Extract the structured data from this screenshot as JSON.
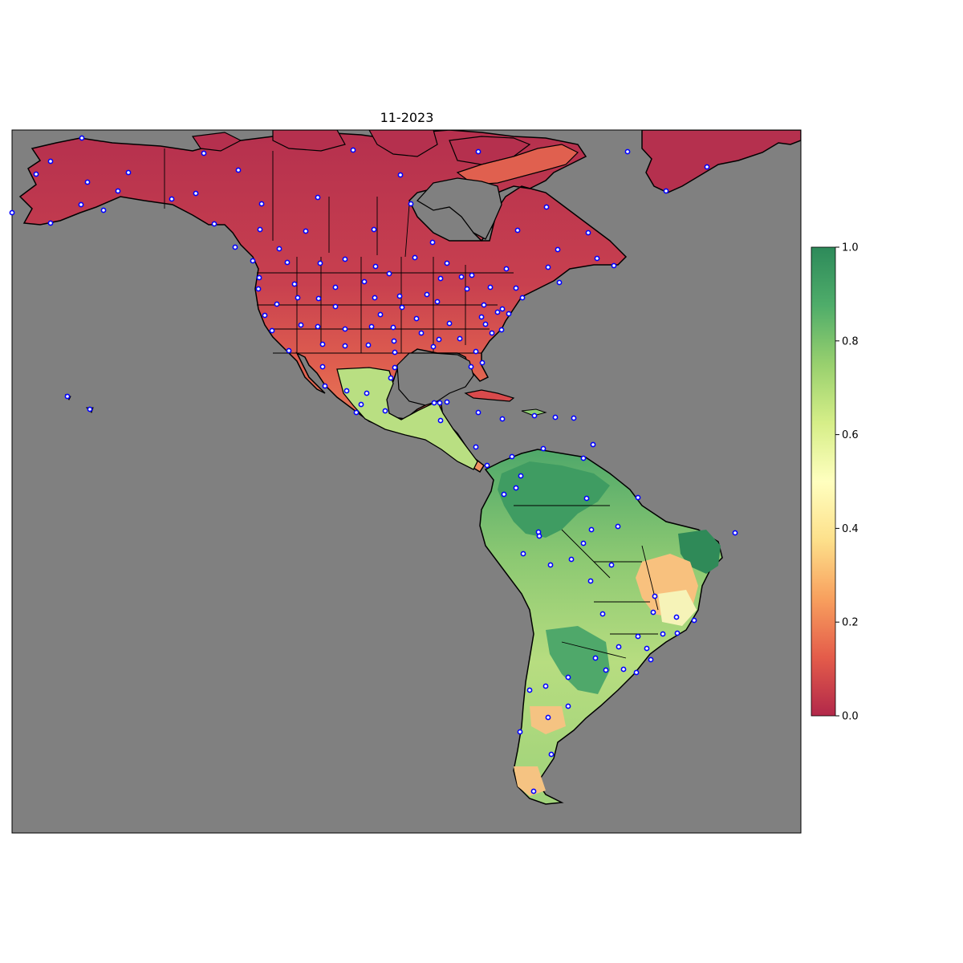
{
  "title": "11-2023",
  "colorbar": {
    "min": 0.0,
    "max": 1.0,
    "ticks": [
      "0.0",
      "0.2",
      "0.4",
      "0.6",
      "0.8",
      "1.0"
    ],
    "tick_values": [
      0.0,
      0.2,
      0.4,
      0.6,
      0.8,
      1.0
    ],
    "colormap": [
      "#b2284a",
      "#e45c4a",
      "#f8a05e",
      "#fde08b",
      "#ffffbf",
      "#d6ee88",
      "#98d06e",
      "#4fad6a",
      "#2d8a5a"
    ]
  },
  "colors": {
    "ocean": "#808080",
    "coastline": "#000000",
    "station_fill": "#ffffff",
    "station_edge": "#0000ff"
  },
  "legend_icons": [
    "station-marker-icon"
  ]
}
